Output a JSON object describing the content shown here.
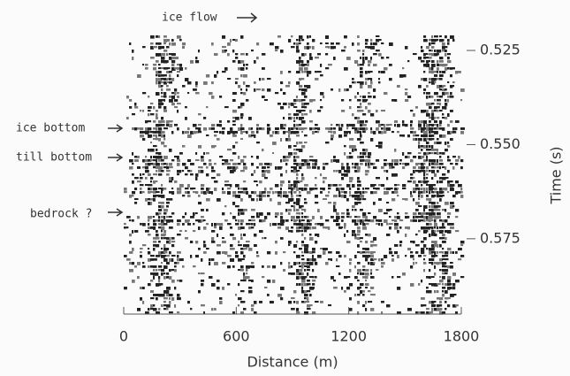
{
  "figure": {
    "annotation_top": "ice flow",
    "labels": [
      "ice bottom",
      "till bottom",
      "bedrock ?"
    ],
    "x_axis": {
      "label": "Distance (m)",
      "lim": [
        0,
        1800
      ],
      "ticks": [
        0,
        600,
        1200,
        1800
      ]
    },
    "y_axis": {
      "label": "Time (s)",
      "lim": [
        0.521,
        0.595
      ],
      "ticks": [
        0.525,
        {
          "value": 0.55,
          "label": "0.550"
        },
        0.575
      ]
    }
  }
}
